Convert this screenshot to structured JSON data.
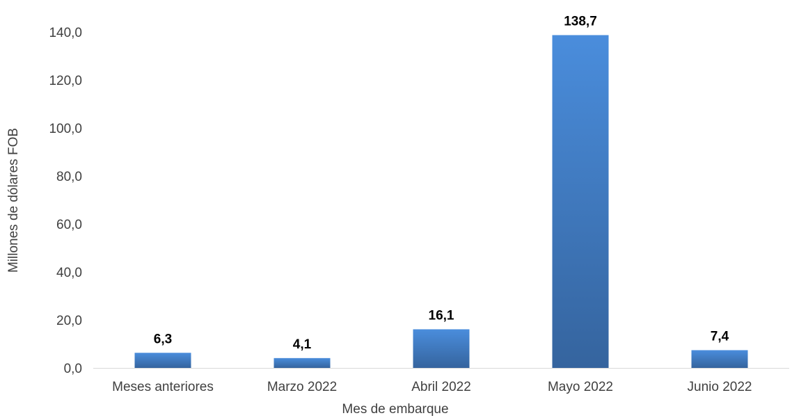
{
  "chart_data": {
    "type": "bar",
    "title": "",
    "xlabel": "Mes de embarque",
    "ylabel": "Millones de dólares FOB",
    "categories": [
      "Meses anteriores",
      "Marzo 2022",
      "Abril 2022",
      "Mayo 2022",
      "Junio 2022"
    ],
    "values": [
      6.3,
      4.1,
      16.1,
      138.7,
      7.4
    ],
    "value_labels": [
      "6,3",
      "4,1",
      "16,1",
      "138,7",
      "7,4"
    ],
    "ylim": [
      0,
      140
    ],
    "yticks": [
      0,
      20,
      40,
      60,
      80,
      100,
      120,
      140
    ],
    "ytick_labels": [
      "0,0",
      "20,0",
      "40,0",
      "60,0",
      "80,0",
      "100,0",
      "120,0",
      "140,0"
    ],
    "grid": false,
    "legend": "none",
    "colors": {
      "bar_top": "#4a8ddc",
      "bar_bottom": "#35649e",
      "axis": "#d9d9d9",
      "text": "#404040"
    }
  }
}
